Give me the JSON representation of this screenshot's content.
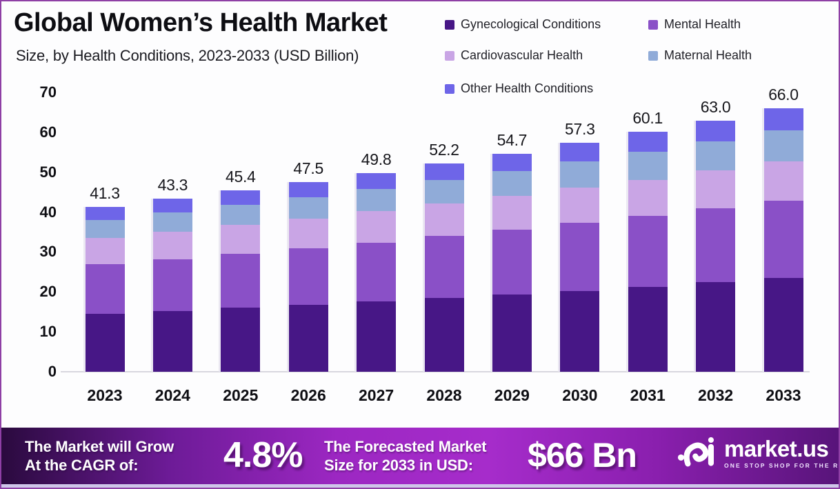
{
  "header": {
    "title": "Global Women’s Health Market",
    "subtitle": "Size, by Health Conditions, 2023-2033 (USD Billion)"
  },
  "legend": [
    {
      "label": "Gynecological Conditions",
      "color": "#471786"
    },
    {
      "label": "Mental Health",
      "color": "#8a50c7"
    },
    {
      "label": "Cardiovascular Health",
      "color": "#c9a5e5"
    },
    {
      "label": "Maternal Health",
      "color": "#90abd8"
    },
    {
      "label": "Other Health Conditions",
      "color": "#6e65e8"
    }
  ],
  "chart_data": {
    "type": "bar",
    "stacked": true,
    "title": "Global Women’s Health Market Size, by Health Conditions, 2023-2033 (USD Billion)",
    "categories": [
      "2023",
      "2024",
      "2025",
      "2026",
      "2027",
      "2028",
      "2029",
      "2030",
      "2031",
      "2032",
      "2033"
    ],
    "series": [
      {
        "name": "Gynecological Conditions",
        "color": "#471786",
        "values": [
          14.5,
          15.2,
          16.0,
          16.8,
          17.6,
          18.5,
          19.4,
          20.3,
          21.3,
          22.4,
          23.5
        ]
      },
      {
        "name": "Mental Health",
        "color": "#8a50c7",
        "values": [
          12.4,
          13.0,
          13.6,
          14.2,
          14.8,
          15.5,
          16.2,
          17.0,
          17.7,
          18.6,
          19.4
        ]
      },
      {
        "name": "Cardiovascular Health",
        "color": "#c9a5e5",
        "values": [
          6.6,
          6.9,
          7.2,
          7.4,
          7.8,
          8.1,
          8.4,
          8.8,
          9.1,
          9.5,
          9.9
        ]
      },
      {
        "name": "Maternal Health",
        "color": "#90abd8",
        "values": [
          4.6,
          4.8,
          5.1,
          5.4,
          5.6,
          5.9,
          6.3,
          6.6,
          7.0,
          7.3,
          7.7
        ]
      },
      {
        "name": "Other Health Conditions",
        "color": "#6e65e8",
        "values": [
          3.2,
          3.4,
          3.5,
          3.7,
          4.0,
          4.2,
          4.4,
          4.6,
          5.0,
          5.2,
          5.5
        ]
      }
    ],
    "totals": [
      41.3,
      43.3,
      45.4,
      47.5,
      49.8,
      52.2,
      54.7,
      57.3,
      60.1,
      63.0,
      66.0
    ],
    "total_labels": [
      "41.3",
      "43.3",
      "45.4",
      "47.5",
      "49.8",
      "52.2",
      "54.7",
      "57.3",
      "60.1",
      "63.0",
      "66.0"
    ],
    "ylabel": "",
    "xlabel": "",
    "ylim": [
      0,
      70
    ],
    "yticks": [
      0,
      10,
      20,
      30,
      40,
      50,
      60,
      70
    ],
    "grid": false,
    "legend_position": "top-right",
    "units": "USD Billion"
  },
  "banner": {
    "cagr_line1": "The Market will Grow",
    "cagr_line2": "At the CAGR of:",
    "cagr_value": "4.8%",
    "forecast_line1": "The Forecasted Market",
    "forecast_line2": "Size for 2033 in USD:",
    "forecast_value": "$66 Bn",
    "logo_text": "market.us",
    "logo_tagline": "ONE STOP SHOP FOR THE REPORTS"
  },
  "colors": {
    "frame_border": "#8e3fa5",
    "background": "#fdfdfe",
    "axis_line": "#d8d6de",
    "text": "#0d0d12",
    "banner_gradient_left": "#2a0a3e",
    "banner_gradient_mid": "#a62ccb",
    "banner_gradient_right": "#571479",
    "bottom_strip": "#cfc6e9"
  }
}
